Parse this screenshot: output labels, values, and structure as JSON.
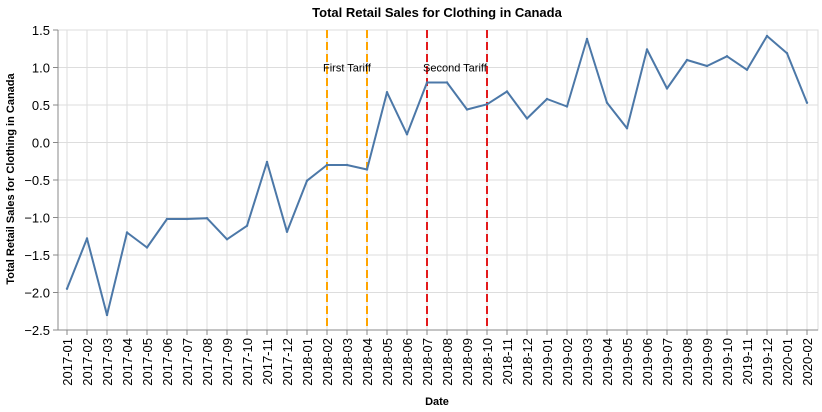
{
  "chart_data": {
    "type": "line",
    "title": "Total Retail Sales for Clothing in Canada",
    "xlabel": "Date",
    "ylabel": "Total Retail Sales for Clothing in Canada",
    "ylim": [
      -2.5,
      1.5
    ],
    "yticks": [
      -2.5,
      -2.0,
      -1.5,
      -1.0,
      -0.5,
      0.0,
      0.5,
      1.0,
      1.5
    ],
    "ytick_labels": [
      "−2.5",
      "−2.0",
      "−1.5",
      "−1.0",
      "−0.5",
      "0.0",
      "0.5",
      "1.0",
      "1.5"
    ],
    "grid": true,
    "line_color": "#4c78a8",
    "categories": [
      "2017-01",
      "2017-02",
      "2017-03",
      "2017-04",
      "2017-05",
      "2017-06",
      "2017-07",
      "2017-08",
      "2017-09",
      "2017-10",
      "2017-11",
      "2017-12",
      "2018-01",
      "2018-02",
      "2018-03",
      "2018-04",
      "2018-05",
      "2018-06",
      "2018-07",
      "2018-08",
      "2018-09",
      "2018-10",
      "2018-11",
      "2018-12",
      "2019-01",
      "2019-02",
      "2019-03",
      "2019-04",
      "2019-05",
      "2019-06",
      "2019-07",
      "2019-08",
      "2019-09",
      "2019-10",
      "2019-11",
      "2019-12",
      "2020-01",
      "2020-02"
    ],
    "values": [
      -1.95,
      -1.28,
      -2.3,
      -1.2,
      -1.4,
      -1.02,
      -1.02,
      -1.01,
      -1.29,
      -1.11,
      -0.26,
      -1.19,
      -0.51,
      -0.3,
      -0.3,
      -0.36,
      0.67,
      0.11,
      0.8,
      0.8,
      0.44,
      0.51,
      0.68,
      0.32,
      0.58,
      0.48,
      1.38,
      0.53,
      0.19,
      1.24,
      0.72,
      1.1,
      1.02,
      1.15,
      0.97,
      1.42,
      1.19,
      0.53
    ],
    "markers": [
      {
        "date": "2018-02",
        "color": "#ffa500"
      },
      {
        "date": "2018-04",
        "color": "#ffa500"
      },
      {
        "date": "2018-07",
        "color": "#e31a1c"
      },
      {
        "date": "2018-10",
        "color": "#e31a1c"
      }
    ],
    "annotations": [
      {
        "text": "First Tariff",
        "date": "2018-02",
        "y": 1.0
      },
      {
        "text": "Second Tariff",
        "date": "2018-07",
        "y": 1.0
      }
    ]
  }
}
